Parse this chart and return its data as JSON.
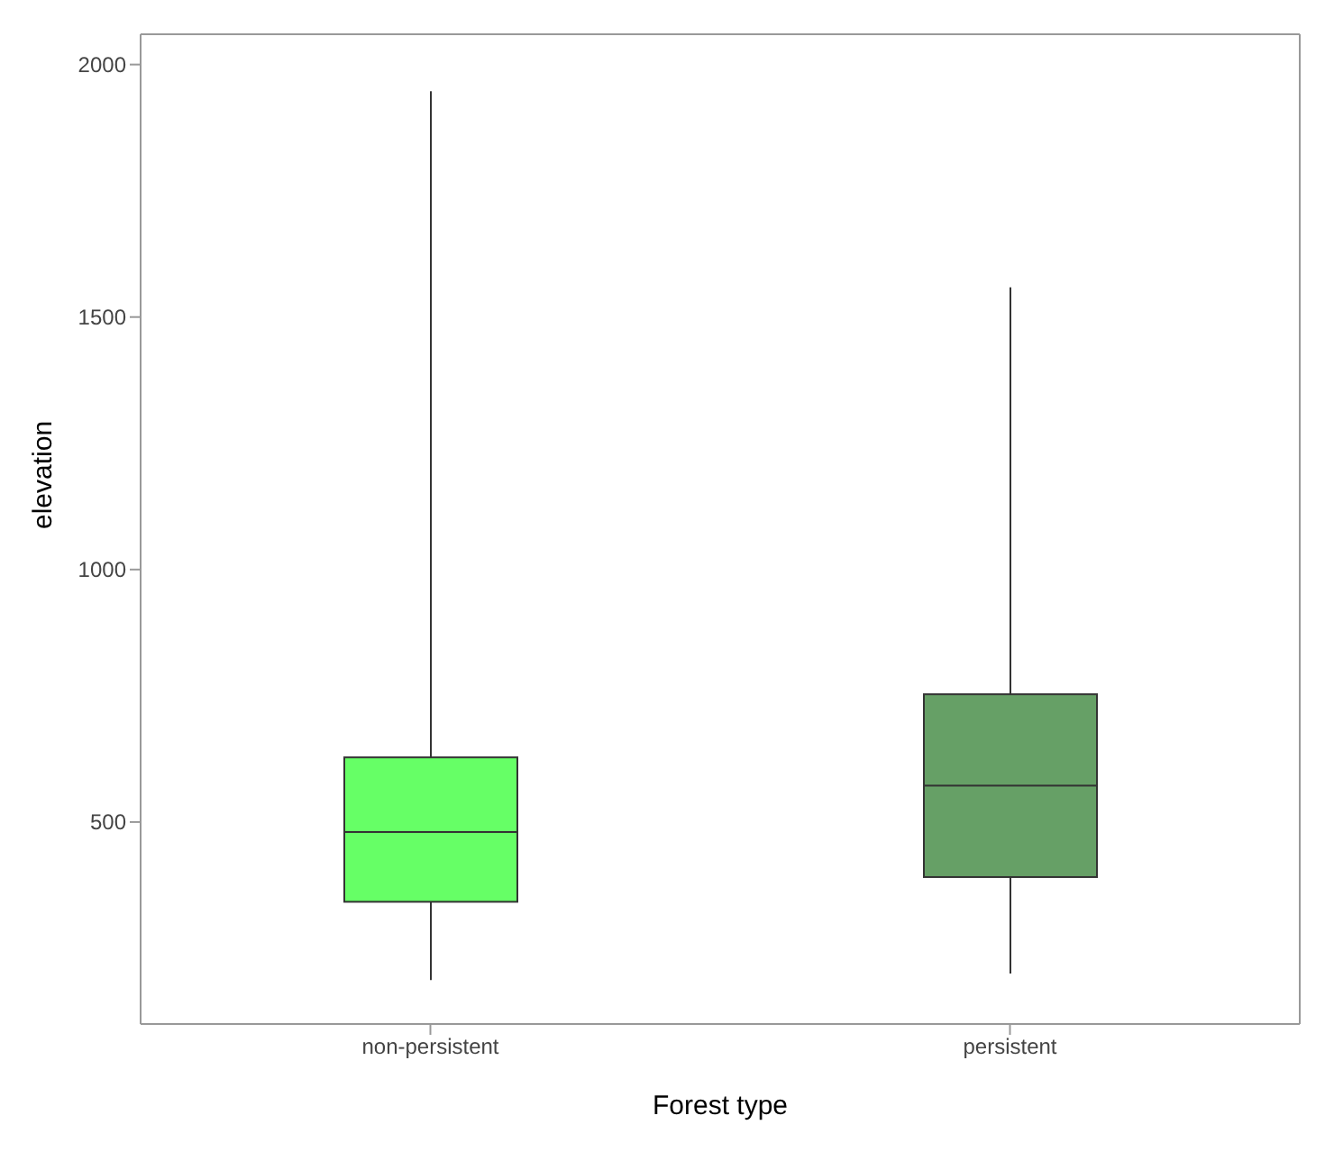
{
  "chart_data": {
    "type": "box",
    "xlabel": "Forest type",
    "ylabel": "elevation",
    "categories": [
      "non-persistent",
      "persistent"
    ],
    "boxes": [
      {
        "low": 187,
        "q1": 342,
        "median": 480,
        "q3": 628,
        "high": 1947
      },
      {
        "low": 200,
        "q1": 391,
        "median": 572,
        "q3": 753,
        "high": 1559
      }
    ],
    "colors": [
      "#66ff66",
      "#66a066"
    ],
    "ylim": [
      100,
      2060
    ],
    "yticks": [
      500,
      1000,
      1500,
      2000
    ],
    "grid": false
  }
}
